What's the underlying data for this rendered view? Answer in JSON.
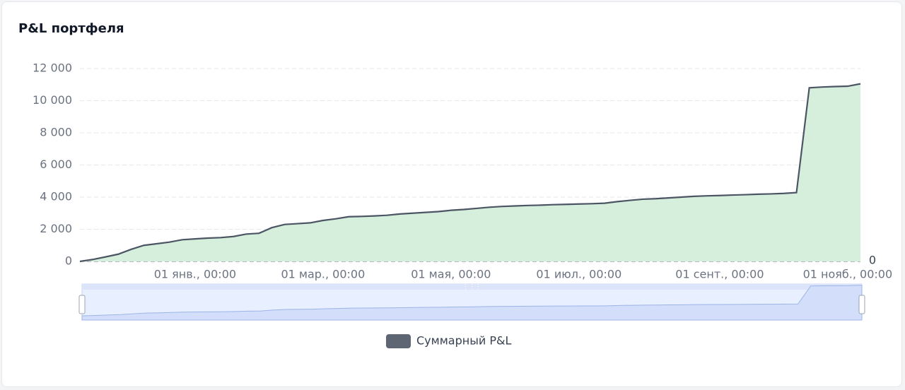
{
  "chart_data": {
    "type": "line",
    "title": "P&L портфеля",
    "categories": [
      null,
      null,
      null,
      null,
      null,
      null,
      null,
      null,
      null,
      "01 янв., 00:00",
      null,
      null,
      null,
      null,
      null,
      null,
      null,
      null,
      null,
      "01 мар., 00:00",
      null,
      null,
      null,
      null,
      null,
      null,
      null,
      null,
      null,
      "01 мая, 00:00",
      null,
      null,
      null,
      null,
      null,
      null,
      null,
      null,
      null,
      "01 июл., 00:00",
      null,
      null,
      null,
      null,
      null,
      null,
      null,
      null,
      null,
      null,
      "01 сент., 00:00",
      null,
      null,
      null,
      null,
      null,
      null,
      null,
      null,
      null,
      "01 нояб., 00:00",
      null
    ],
    "series": [
      {
        "name": "Суммарный P&L",
        "color": "#4b5563",
        "area_color": "#d6eedc",
        "values": [
          0,
          120,
          280,
          450,
          750,
          1000,
          1100,
          1200,
          1350,
          1400,
          1450,
          1480,
          1550,
          1700,
          1750,
          2100,
          2300,
          2350,
          2400,
          2550,
          2650,
          2780,
          2800,
          2830,
          2870,
          2950,
          3000,
          3050,
          3100,
          3180,
          3230,
          3300,
          3370,
          3420,
          3450,
          3480,
          3500,
          3530,
          3550,
          3570,
          3590,
          3620,
          3720,
          3800,
          3870,
          3900,
          3950,
          4000,
          4050,
          4080,
          4100,
          4130,
          4150,
          4180,
          4200,
          4230,
          4280,
          10800,
          10850,
          10880,
          10900,
          11050
        ]
      }
    ],
    "ylim": [
      0,
      12000
    ],
    "yticks": [
      0,
      {
        "value": 2000,
        "label": "2 000"
      },
      {
        "value": 4000,
        "label": "4 000"
      },
      {
        "value": 6000,
        "label": "6 000"
      },
      {
        "value": 8000,
        "label": "8 000"
      },
      {
        "value": 10000,
        "label": "10 000"
      },
      {
        "value": 12000,
        "label": "12 000"
      }
    ],
    "grid": true,
    "end_label": 0,
    "data_zoom": true
  }
}
